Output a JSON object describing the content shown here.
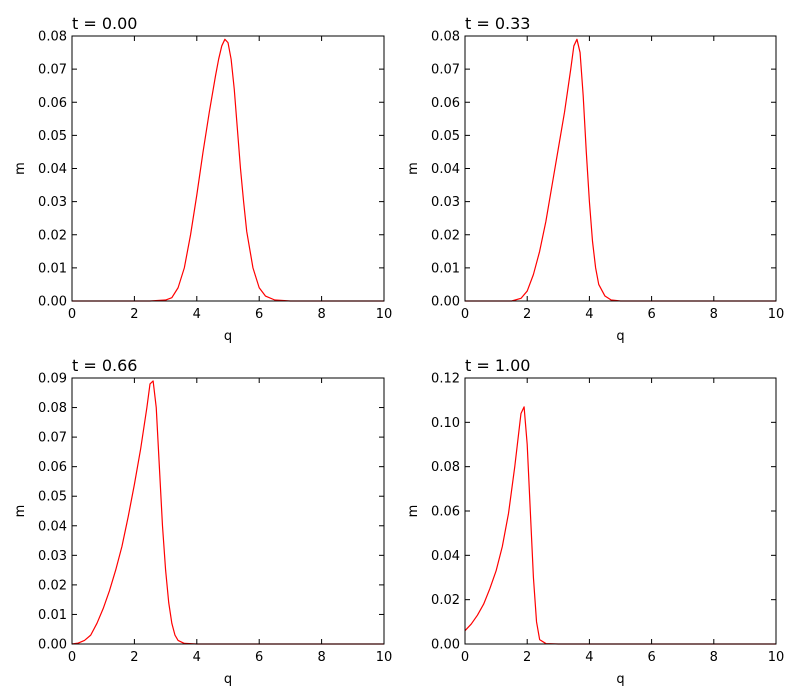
{
  "chart_data": [
    {
      "type": "line",
      "title": "t = 0.00",
      "xlabel": "q",
      "ylabel": "m",
      "xlim": [
        0,
        10
      ],
      "ylim": [
        0,
        0.08
      ],
      "xticks": [
        0,
        2,
        4,
        6,
        8,
        10
      ],
      "xtick_labels": [
        "0",
        "2",
        "4",
        "6",
        "8",
        "10"
      ],
      "yticks": [
        0,
        0.01,
        0.02,
        0.03,
        0.04,
        0.05,
        0.06,
        0.07,
        0.08
      ],
      "ytick_labels": [
        "0.00",
        "0.01",
        "0.02",
        "0.03",
        "0.04",
        "0.05",
        "0.06",
        "0.07",
        "0.08"
      ],
      "color": "#ff0000",
      "grid": false,
      "series": [
        {
          "x": [
            0,
            2.5,
            3.0,
            3.2,
            3.4,
            3.6,
            3.8,
            4.0,
            4.2,
            4.4,
            4.6,
            4.7,
            4.8,
            4.9,
            5.0,
            5.1,
            5.2,
            5.3,
            5.4,
            5.5,
            5.6,
            5.8,
            6.0,
            6.2,
            6.5,
            7.0,
            10
          ],
          "y": [
            0,
            0,
            0.0003,
            0.001,
            0.004,
            0.01,
            0.02,
            0.032,
            0.045,
            0.057,
            0.068,
            0.073,
            0.077,
            0.079,
            0.078,
            0.073,
            0.064,
            0.052,
            0.04,
            0.03,
            0.021,
            0.01,
            0.004,
            0.0015,
            0.0003,
            0,
            0
          ]
        }
      ]
    },
    {
      "type": "line",
      "title": "t = 0.33",
      "xlabel": "q",
      "ylabel": "m",
      "xlim": [
        0,
        10
      ],
      "ylim": [
        0,
        0.08
      ],
      "xticks": [
        0,
        2,
        4,
        6,
        8,
        10
      ],
      "xtick_labels": [
        "0",
        "2",
        "4",
        "6",
        "8",
        "10"
      ],
      "yticks": [
        0,
        0.01,
        0.02,
        0.03,
        0.04,
        0.05,
        0.06,
        0.07,
        0.08
      ],
      "ytick_labels": [
        "0.00",
        "0.01",
        "0.02",
        "0.03",
        "0.04",
        "0.05",
        "0.06",
        "0.07",
        "0.08"
      ],
      "color": "#ff0000",
      "grid": false,
      "series": [
        {
          "x": [
            0,
            1.5,
            1.8,
            2.0,
            2.2,
            2.4,
            2.6,
            2.8,
            3.0,
            3.2,
            3.4,
            3.5,
            3.6,
            3.7,
            3.8,
            3.9,
            4.0,
            4.1,
            4.2,
            4.3,
            4.5,
            4.7,
            5.0,
            10
          ],
          "y": [
            0,
            0,
            0.0008,
            0.003,
            0.008,
            0.015,
            0.024,
            0.035,
            0.046,
            0.057,
            0.07,
            0.077,
            0.079,
            0.075,
            0.062,
            0.045,
            0.03,
            0.018,
            0.01,
            0.005,
            0.0015,
            0.0003,
            0,
            0
          ]
        }
      ]
    },
    {
      "type": "line",
      "title": "t = 0.66",
      "xlabel": "q",
      "ylabel": "m",
      "xlim": [
        0,
        10
      ],
      "ylim": [
        0,
        0.09
      ],
      "xticks": [
        0,
        2,
        4,
        6,
        8,
        10
      ],
      "xtick_labels": [
        "0",
        "2",
        "4",
        "6",
        "8",
        "10"
      ],
      "yticks": [
        0,
        0.01,
        0.02,
        0.03,
        0.04,
        0.05,
        0.06,
        0.07,
        0.08,
        0.09
      ],
      "ytick_labels": [
        "0.00",
        "0.01",
        "0.02",
        "0.03",
        "0.04",
        "0.05",
        "0.06",
        "0.07",
        "0.08",
        "0.09"
      ],
      "color": "#ff0000",
      "grid": false,
      "series": [
        {
          "x": [
            0,
            0.2,
            0.4,
            0.6,
            0.8,
            1.0,
            1.2,
            1.4,
            1.6,
            1.8,
            2.0,
            2.2,
            2.4,
            2.5,
            2.6,
            2.7,
            2.8,
            2.9,
            3.0,
            3.1,
            3.2,
            3.3,
            3.4,
            3.6,
            4.0,
            10
          ],
          "y": [
            0,
            0.0003,
            0.0012,
            0.003,
            0.007,
            0.012,
            0.018,
            0.025,
            0.033,
            0.043,
            0.054,
            0.066,
            0.08,
            0.088,
            0.089,
            0.08,
            0.06,
            0.04,
            0.025,
            0.014,
            0.007,
            0.003,
            0.0012,
            0.0002,
            0,
            0
          ]
        }
      ]
    },
    {
      "type": "line",
      "title": "t = 1.00",
      "xlabel": "q",
      "ylabel": "m",
      "xlim": [
        0,
        10
      ],
      "ylim": [
        0,
        0.12
      ],
      "xticks": [
        0,
        2,
        4,
        6,
        8,
        10
      ],
      "xtick_labels": [
        "0",
        "2",
        "4",
        "6",
        "8",
        "10"
      ],
      "yticks": [
        0,
        0.02,
        0.04,
        0.06,
        0.08,
        0.1,
        0.12
      ],
      "ytick_labels": [
        "0.00",
        "0.02",
        "0.04",
        "0.06",
        "0.08",
        "0.10",
        "0.12"
      ],
      "color": "#ff0000",
      "grid": false,
      "series": [
        {
          "x": [
            0,
            0.2,
            0.4,
            0.6,
            0.8,
            1.0,
            1.2,
            1.4,
            1.6,
            1.7,
            1.8,
            1.9,
            2.0,
            2.1,
            2.2,
            2.3,
            2.4,
            2.6,
            3.0,
            10
          ],
          "y": [
            0.006,
            0.009,
            0.013,
            0.018,
            0.025,
            0.033,
            0.044,
            0.059,
            0.08,
            0.092,
            0.104,
            0.107,
            0.09,
            0.06,
            0.03,
            0.01,
            0.002,
            0.0002,
            0,
            0
          ]
        }
      ]
    }
  ]
}
